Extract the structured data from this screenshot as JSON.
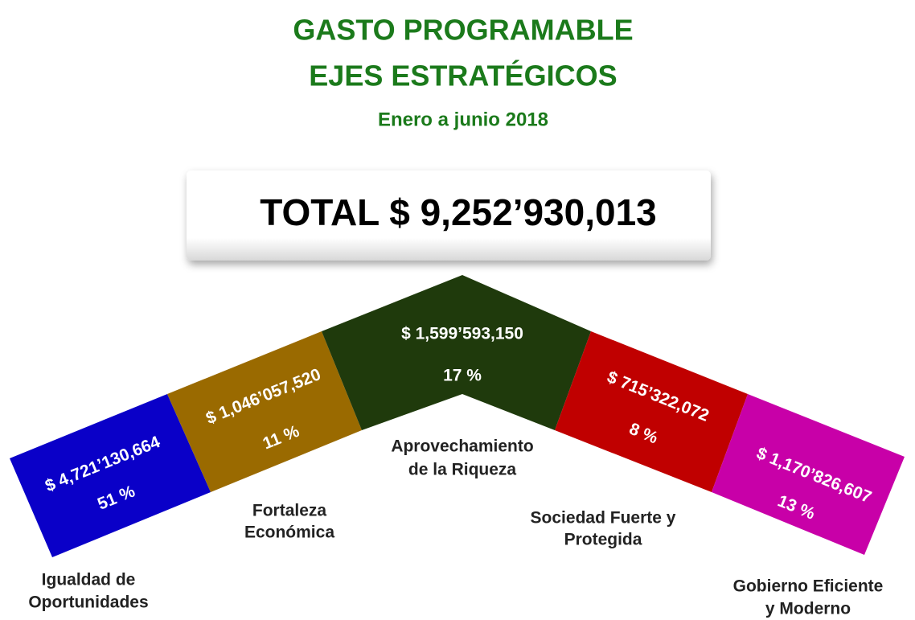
{
  "title": [
    "GASTO PROGRAMABLE",
    "EJES ESTRATÉGICOS"
  ],
  "subtitle": "Enero a junio 2018",
  "total": "TOTAL  $ 9,252’930,013",
  "segments": [
    {
      "amount": "$ 4,721’130,664",
      "percent": "51 %",
      "label": [
        "Igualdad de",
        "Oportunidades"
      ],
      "color": "#0a00c8"
    },
    {
      "amount": "$ 1,046’057,520",
      "percent": "11 %",
      "label": [
        "Fortaleza",
        "Económica"
      ],
      "color": "#9a6a00"
    },
    {
      "amount": "$ 1,599’593,150",
      "percent": "17 %",
      "label": [
        "Aprovechamiento",
        "de la Riqueza"
      ],
      "color": "#1f3a0c"
    },
    {
      "amount": "$ 715’322,072",
      "percent": "8 %",
      "label": [
        "Sociedad Fuerte y",
        "Protegida"
      ],
      "color": "#c00000"
    },
    {
      "amount": "$ 1,170’826,607",
      "percent": "13 %",
      "label": [
        "Gobierno Eficiente",
        "y Moderno"
      ],
      "color": "#c800a8"
    }
  ]
}
